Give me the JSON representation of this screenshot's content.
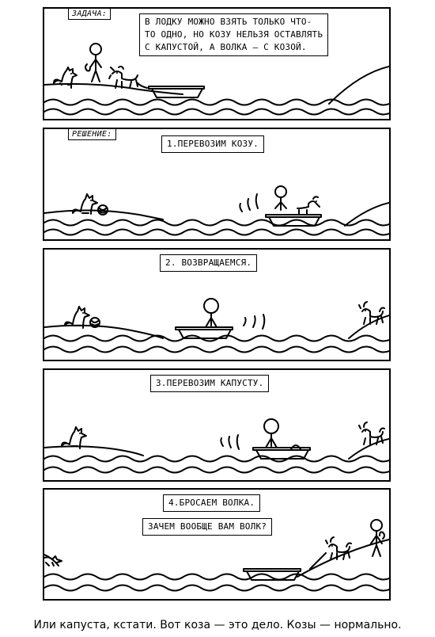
{
  "panels": [
    {
      "tag": "ЗАДАЧА:",
      "text_lines": [
        "В ЛОДКУ МОЖНО ВЗЯТЬ ТОЛЬКО ЧТО-",
        "ТО ОДНО, НО КОЗУ НЕЛЬЗЯ ОСТАВЛЯТЬ",
        "С КАПУСТОЙ, А ВОЛКА – С КОЗОЙ."
      ]
    },
    {
      "tag": "РЕШЕНИЕ:",
      "text": "1.ПЕРЕВОЗИМ КОЗУ."
    },
    {
      "text": "2. ВОЗВРАЩАЕМСЯ."
    },
    {
      "text": "3.ПЕРЕВОЗИМ КАПУСТУ."
    },
    {
      "text": "4.БРОСАЕМ ВОЛКА.",
      "speech": "ЗАЧЕМ ВООБЩЕ ВАМ ВОЛК?"
    }
  ],
  "caption": "Или капуста, кстати. Вот коза — это дело. Козы — нормально.",
  "icons": [
    "wolf-icon",
    "goat-icon",
    "cabbage-icon",
    "boat-icon",
    "stick-figure-icon",
    "water-waves"
  ],
  "colors": {
    "ink": "#000000",
    "paper": "#ffffff"
  }
}
